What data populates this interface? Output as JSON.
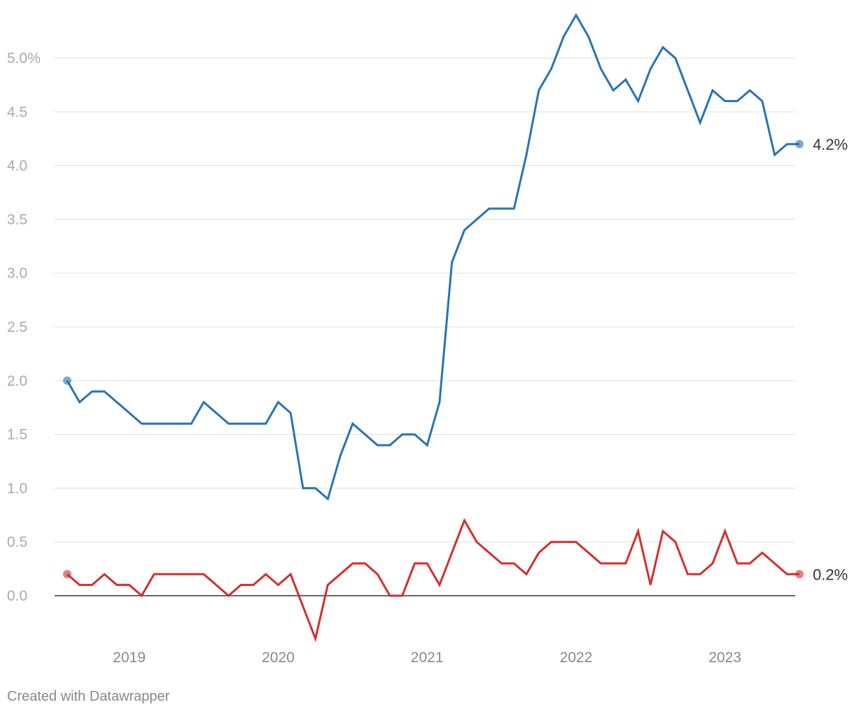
{
  "chart_data": {
    "type": "line",
    "title": "",
    "xlabel": "",
    "ylabel": "",
    "ylim": [
      -0.45,
      5.45
    ],
    "y_ticks": [
      {
        "value": 5.0,
        "label": "5.0%"
      },
      {
        "value": 4.5,
        "label": "4.5"
      },
      {
        "value": 4.0,
        "label": "4.0"
      },
      {
        "value": 3.5,
        "label": "3.5"
      },
      {
        "value": 3.0,
        "label": "3.0"
      },
      {
        "value": 2.5,
        "label": "2.5"
      },
      {
        "value": 2.0,
        "label": "2.0"
      },
      {
        "value": 1.5,
        "label": "1.5"
      },
      {
        "value": 1.0,
        "label": "1.0"
      },
      {
        "value": 0.5,
        "label": "0.5"
      },
      {
        "value": 0.0,
        "label": "0.0"
      }
    ],
    "x_ticks": [
      {
        "value": "2019-01",
        "label": "2019"
      },
      {
        "value": "2020-01",
        "label": "2020"
      },
      {
        "value": "2021-01",
        "label": "2021"
      },
      {
        "value": "2022-01",
        "label": "2022"
      },
      {
        "value": "2023-01",
        "label": "2023"
      }
    ],
    "grid": true,
    "legend": "none",
    "x": [
      "2018-08",
      "2018-09",
      "2018-10",
      "2018-11",
      "2018-12",
      "2019-01",
      "2019-02",
      "2019-03",
      "2019-04",
      "2019-05",
      "2019-06",
      "2019-07",
      "2019-08",
      "2019-09",
      "2019-10",
      "2019-11",
      "2019-12",
      "2020-01",
      "2020-02",
      "2020-03",
      "2020-04",
      "2020-05",
      "2020-06",
      "2020-07",
      "2020-08",
      "2020-09",
      "2020-10",
      "2020-11",
      "2020-12",
      "2021-01",
      "2021-02",
      "2021-03",
      "2021-04",
      "2021-05",
      "2021-06",
      "2021-07",
      "2021-08",
      "2021-09",
      "2021-10",
      "2021-11",
      "2021-12",
      "2022-01",
      "2022-02",
      "2022-03",
      "2022-04",
      "2022-05",
      "2022-06",
      "2022-07",
      "2022-08",
      "2022-09",
      "2022-10",
      "2022-11",
      "2022-12",
      "2023-01",
      "2023-02",
      "2023-03",
      "2023-04",
      "2023-05",
      "2023-06",
      "2023-07"
    ],
    "series": [
      {
        "color": "#2774b3",
        "end_label": "4.2%",
        "values": [
          2.0,
          1.8,
          1.9,
          1.9,
          1.8,
          1.7,
          1.6,
          1.6,
          1.6,
          1.6,
          1.6,
          1.8,
          1.7,
          1.6,
          1.6,
          1.6,
          1.6,
          1.8,
          1.7,
          1.0,
          1.0,
          0.9,
          1.3,
          1.6,
          1.5,
          1.4,
          1.4,
          1.5,
          1.5,
          1.4,
          1.8,
          3.1,
          3.4,
          3.5,
          3.6,
          3.6,
          3.6,
          4.1,
          4.7,
          4.9,
          5.2,
          5.4,
          5.2,
          4.9,
          4.7,
          4.8,
          4.6,
          4.9,
          5.1,
          5.0,
          4.7,
          4.4,
          4.7,
          4.6,
          4.6,
          4.7,
          4.6,
          4.1,
          4.2,
          4.2
        ]
      },
      {
        "color": "#d62d2d",
        "end_label": "0.2%",
        "values": [
          0.2,
          0.1,
          0.1,
          0.2,
          0.1,
          0.1,
          0.0,
          0.2,
          0.2,
          0.2,
          0.2,
          0.2,
          0.1,
          0.0,
          0.1,
          0.1,
          0.2,
          0.1,
          0.2,
          -0.1,
          -0.4,
          0.1,
          0.2,
          0.3,
          0.3,
          0.2,
          0.0,
          0.0,
          0.3,
          0.3,
          0.1,
          0.4,
          0.7,
          0.5,
          0.4,
          0.3,
          0.3,
          0.2,
          0.4,
          0.5,
          0.5,
          0.5,
          0.4,
          0.3,
          0.3,
          0.3,
          0.6,
          0.1,
          0.6,
          0.5,
          0.2,
          0.2,
          0.3,
          0.6,
          0.3,
          0.3,
          0.4,
          0.3,
          0.2,
          0.2
        ]
      }
    ]
  },
  "footer": {
    "credit": "Created with Datawrapper"
  }
}
